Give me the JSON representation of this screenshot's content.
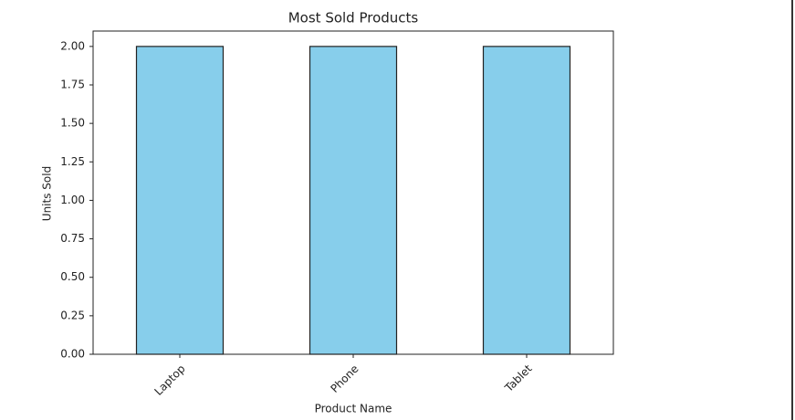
{
  "chart_data": {
    "type": "bar",
    "title": "Most Sold Products",
    "x_label": "Product Name",
    "y_label": "Units Sold",
    "categories": [
      "Laptop",
      "Phone",
      "Tablet"
    ],
    "values": [
      2,
      2,
      2
    ],
    "color": "#87ceeb",
    "ylim": [
      0,
      2.1
    ],
    "yticks": [
      {
        "value": 0,
        "label": "0.00"
      },
      {
        "value": 0.25,
        "label": "0.25"
      },
      {
        "value": 0.5,
        "label": "0.50"
      },
      {
        "value": 0.75,
        "label": "0.75"
      },
      {
        "value": 1,
        "label": "1.00"
      },
      {
        "value": 1.25,
        "label": "1.25"
      },
      {
        "value": 1.5,
        "label": "1.50"
      },
      {
        "value": 1.75,
        "label": "1.75"
      },
      {
        "value": 2,
        "label": "2.00"
      }
    ],
    "grid": false
  }
}
